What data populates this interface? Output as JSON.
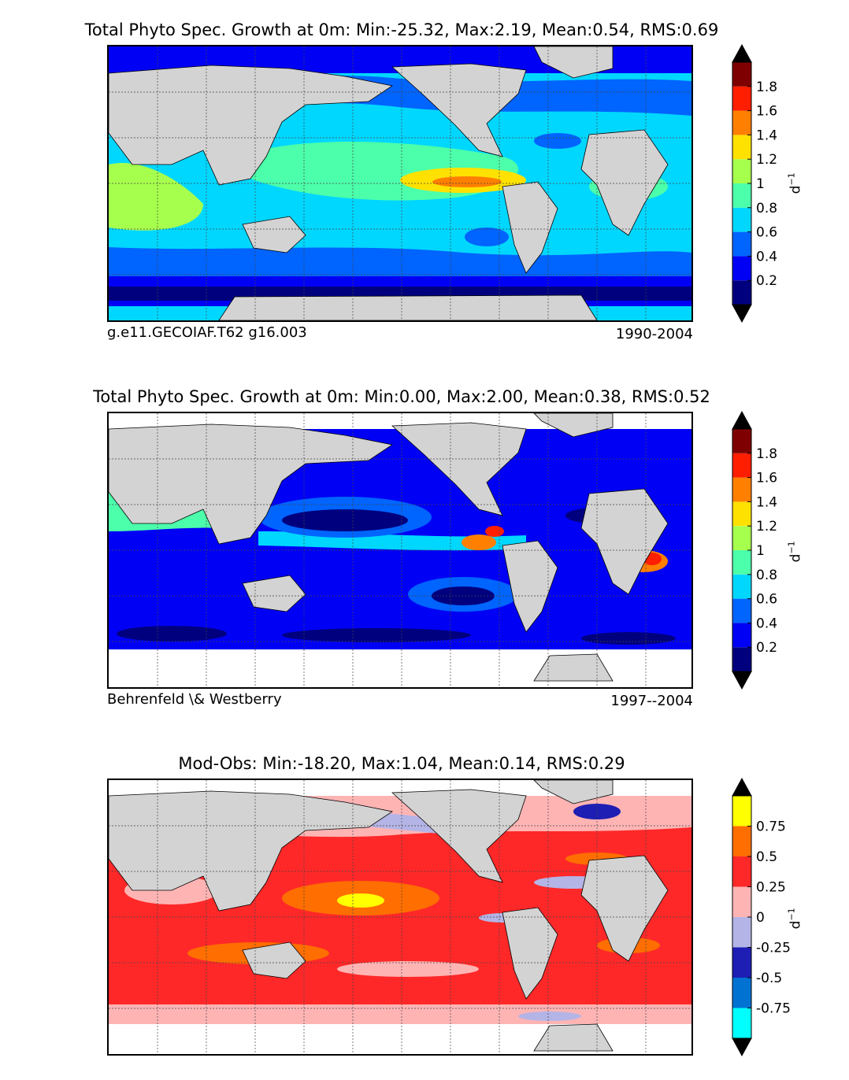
{
  "panels": [
    {
      "title": "Total Phyto Spec. Growth at 0m: Min:-25.32, Max:2.19, Mean:0.54, RMS:0.69",
      "caption_left": "g.e11.GECOIAF.T62 g16.003",
      "caption_right": "1990-2004",
      "colorbar": {
        "unit_base": "d",
        "unit_exp": "−1",
        "colors": [
          "#00007f",
          "#0000f5",
          "#0064ff",
          "#00d7ff",
          "#4cffaa",
          "#a6ff4c",
          "#ffe100",
          "#ff7f00",
          "#ff1e00",
          "#7f0000"
        ],
        "tick_labels": [
          "0.2",
          "0.4",
          "0.6",
          "0.8",
          "1",
          "1.2",
          "1.4",
          "1.6",
          "1.8"
        ],
        "extend_low_color": "#000000",
        "extend_high_color": "#000000"
      }
    },
    {
      "title": "Total Phyto Spec. Growth at 0m: Min:0.00, Max:2.00, Mean:0.38, RMS:0.52",
      "caption_left": "Behrenfeld \\& Westberry",
      "caption_right": "1997--2004",
      "colorbar": {
        "unit_base": "d",
        "unit_exp": "−1",
        "colors": [
          "#00007f",
          "#0000f5",
          "#0064ff",
          "#00d7ff",
          "#4cffaa",
          "#a6ff4c",
          "#ffe100",
          "#ff7f00",
          "#ff1e00",
          "#7f0000"
        ],
        "tick_labels": [
          "0.2",
          "0.4",
          "0.6",
          "0.8",
          "1",
          "1.2",
          "1.4",
          "1.6",
          "1.8"
        ],
        "extend_low_color": "#000000",
        "extend_high_color": "#000000"
      }
    },
    {
      "title": "Mod-Obs: Min:-18.20, Max:1.04, Mean:0.14, RMS:0.29",
      "caption_left": "",
      "caption_right": "",
      "colorbar": {
        "unit_base": "d",
        "unit_exp": "−1",
        "colors": [
          "#00ffff",
          "#0073d2",
          "#1e1eb4",
          "#b4b4e6",
          "#ffb4b4",
          "#ff2828",
          "#ff6e00",
          "#ffff00"
        ],
        "tick_labels": [
          "-0.75",
          "-0.5",
          "-0.25",
          "0",
          "0.25",
          "0.5",
          "0.75"
        ],
        "extend_low_color": "#000000",
        "extend_high_color": "#000000"
      }
    }
  ],
  "chart_data": [
    {
      "type": "heatmap",
      "title": "Total Phyto Spec. Growth at 0m: Min:-25.32, Max:2.19, Mean:0.54, RMS:0.69",
      "stats": {
        "min": -25.32,
        "max": 2.19,
        "mean": 0.54,
        "rms": 0.69
      },
      "colorbar_levels": [
        0.0,
        0.2,
        0.4,
        0.6,
        0.8,
        1.0,
        1.2,
        1.4,
        1.6,
        1.8,
        2.0
      ],
      "colorbar_ticks": [
        0.2,
        0.4,
        0.6,
        0.8,
        1.0,
        1.2,
        1.4,
        1.6,
        1.8
      ],
      "extend": "both",
      "unit": "d−1",
      "land_color": "#d3d3d3",
      "grid": true,
      "source": "g.e11.GECOIAF.T62 g16.003",
      "period": "1990-2004"
    },
    {
      "type": "heatmap",
      "title": "Total Phyto Spec. Growth at 0m: Min:0.00, Max:2.00, Mean:0.38, RMS:0.52",
      "stats": {
        "min": 0.0,
        "max": 2.0,
        "mean": 0.38,
        "rms": 0.52
      },
      "colorbar_levels": [
        0.0,
        0.2,
        0.4,
        0.6,
        0.8,
        1.0,
        1.2,
        1.4,
        1.6,
        1.8,
        2.0
      ],
      "colorbar_ticks": [
        0.2,
        0.4,
        0.6,
        0.8,
        1.0,
        1.2,
        1.4,
        1.6,
        1.8
      ],
      "extend": "both",
      "unit": "d−1",
      "land_color": "#d3d3d3",
      "grid": true,
      "source": "Behrenfeld \\& Westberry",
      "period": "1997--2004"
    },
    {
      "type": "heatmap",
      "title": "Mod-Obs: Min:-18.20, Max:1.04, Mean:0.14, RMS:0.29",
      "stats": {
        "min": -18.2,
        "max": 1.04,
        "mean": 0.14,
        "rms": 0.29
      },
      "colorbar_levels": [
        -1.0,
        -0.75,
        -0.5,
        -0.25,
        0.0,
        0.25,
        0.5,
        0.75,
        1.0
      ],
      "colorbar_ticks": [
        -0.75,
        -0.5,
        -0.25,
        0.0,
        0.25,
        0.5,
        0.75
      ],
      "extend": "both",
      "unit": "d−1",
      "land_color": "#d3d3d3",
      "grid": true
    }
  ]
}
